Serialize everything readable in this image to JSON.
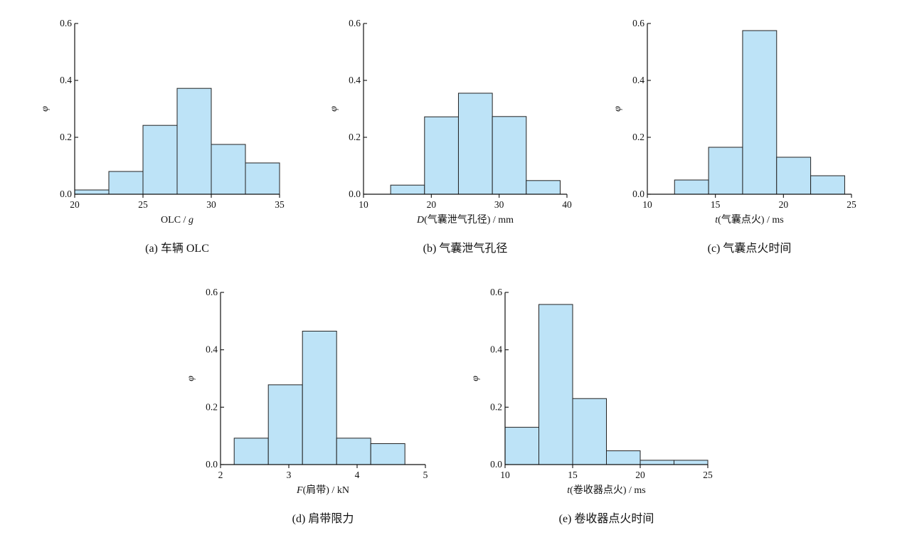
{
  "chart_data": [
    {
      "type": "bar",
      "caption": "(a) 车辆 OLC",
      "xlabel": "OLC / g",
      "ylabel": "φ",
      "bins": [
        [
          20,
          22.5
        ],
        [
          22.5,
          25
        ],
        [
          25,
          27.5
        ],
        [
          27.5,
          30
        ],
        [
          30,
          32.5
        ],
        [
          32.5,
          35
        ]
      ],
      "values": [
        0.015,
        0.08,
        0.242,
        0.372,
        0.175,
        0.11
      ],
      "xlim": [
        20,
        35
      ],
      "ylim": [
        0,
        0.6
      ],
      "xticks": [
        20,
        25,
        30,
        35
      ],
      "yticks": [
        0.0,
        0.2,
        0.4,
        0.6
      ],
      "xtick_labels": [
        "20",
        "25",
        "30",
        "35"
      ],
      "ytick_labels": [
        "0.0",
        "0.2",
        "0.4",
        "0.6"
      ]
    },
    {
      "type": "bar",
      "caption": "(b) 气囊泄气孔径",
      "xlabel": "D(气囊泄气孔径) / mm",
      "ylabel": "φ",
      "bins": [
        [
          14,
          19
        ],
        [
          19,
          24
        ],
        [
          24,
          29
        ],
        [
          29,
          34
        ],
        [
          34,
          39
        ]
      ],
      "values": [
        0.032,
        0.272,
        0.355,
        0.273,
        0.048
      ],
      "xlim": [
        10,
        40
      ],
      "ylim": [
        0,
        0.6
      ],
      "xticks": [
        10,
        20,
        30,
        40
      ],
      "yticks": [
        0.0,
        0.2,
        0.4,
        0.6
      ],
      "xtick_labels": [
        "10",
        "20",
        "30",
        "40"
      ],
      "ytick_labels": [
        "0.0",
        "0.2",
        "0.4",
        "0.6"
      ]
    },
    {
      "type": "bar",
      "caption": "(c) 气囊点火时间",
      "xlabel": "t(气囊点火) / ms",
      "ylabel": "φ",
      "bins": [
        [
          12,
          14.5
        ],
        [
          14.5,
          17
        ],
        [
          17,
          19.5
        ],
        [
          19.5,
          22
        ],
        [
          22,
          24.5
        ]
      ],
      "values": [
        0.05,
        0.165,
        0.575,
        0.13,
        0.065
      ],
      "xlim": [
        10,
        25
      ],
      "ylim": [
        0,
        0.6
      ],
      "xticks": [
        10,
        15,
        20,
        25
      ],
      "yticks": [
        0.0,
        0.2,
        0.4,
        0.6
      ],
      "xtick_labels": [
        "10",
        "15",
        "20",
        "25"
      ],
      "ytick_labels": [
        "0.0",
        "0.2",
        "0.4",
        "0.6"
      ]
    },
    {
      "type": "bar",
      "caption": "(d) 肩带限力",
      "xlabel": "F(肩带) / kN",
      "ylabel": "φ",
      "bins": [
        [
          2.2,
          2.7
        ],
        [
          2.7,
          3.2
        ],
        [
          3.2,
          3.7
        ],
        [
          3.7,
          4.2
        ],
        [
          4.2,
          4.7
        ]
      ],
      "values": [
        0.092,
        0.278,
        0.465,
        0.092,
        0.073
      ],
      "xlim": [
        2,
        5
      ],
      "ylim": [
        0,
        0.6
      ],
      "xticks": [
        2,
        3,
        4,
        5
      ],
      "yticks": [
        0.0,
        0.2,
        0.4,
        0.6
      ],
      "xtick_labels": [
        "2",
        "3",
        "4",
        "5"
      ],
      "ytick_labels": [
        "0.0",
        "0.2",
        "0.4",
        "0.6"
      ]
    },
    {
      "type": "bar",
      "caption": "(e) 卷收器点火时间",
      "xlabel": "t(卷收器点火) / ms",
      "ylabel": "φ",
      "bins": [
        [
          10,
          12.5
        ],
        [
          12.5,
          15
        ],
        [
          15,
          17.5
        ],
        [
          17.5,
          20
        ],
        [
          20,
          22.5
        ],
        [
          22.5,
          25
        ]
      ],
      "values": [
        0.13,
        0.558,
        0.23,
        0.048,
        0.015,
        0.015
      ],
      "xlim": [
        10,
        25
      ],
      "ylim": [
        0,
        0.6
      ],
      "xticks": [
        10,
        15,
        20,
        25
      ],
      "yticks": [
        0.0,
        0.2,
        0.4,
        0.6
      ],
      "xtick_labels": [
        "10",
        "15",
        "20",
        "25"
      ],
      "ytick_labels": [
        "0.0",
        "0.2",
        "0.4",
        "0.6"
      ]
    }
  ]
}
